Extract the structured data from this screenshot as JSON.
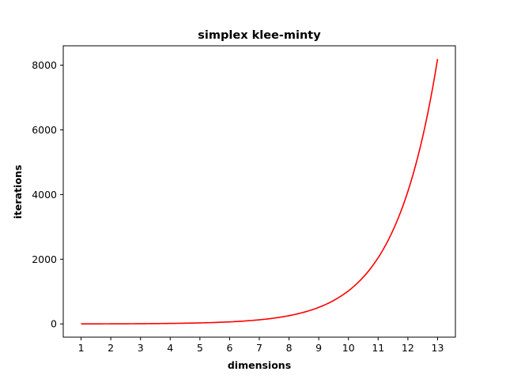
{
  "chart_data": {
    "type": "line",
    "title": "simplex klee-minty",
    "xlabel": "dimensions",
    "ylabel": "iterations",
    "xlim": [
      0.4,
      13.6
    ],
    "ylim": [
      -409.5,
      8600
    ],
    "xticks": [
      1,
      2,
      3,
      4,
      5,
      6,
      7,
      8,
      9,
      10,
      11,
      12,
      13
    ],
    "xtick_labels": [
      "1",
      "2",
      "3",
      "4",
      "5",
      "6",
      "7",
      "8",
      "9",
      "10",
      "11",
      "12",
      "13"
    ],
    "yticks": [
      0,
      2000,
      4000,
      6000,
      8000
    ],
    "ytick_labels": [
      "0",
      "2000",
      "4000",
      "6000",
      "8000"
    ],
    "grid": false,
    "legend": "none",
    "series": [
      {
        "color": "#ff0000",
        "x": [
          1,
          2,
          3,
          4,
          5,
          6,
          7,
          8,
          9,
          10,
          11,
          12,
          13
        ],
        "y": [
          1,
          3,
          7,
          15,
          31,
          63,
          127,
          255,
          511,
          1023,
          2047,
          4095,
          8191
        ]
      }
    ]
  }
}
